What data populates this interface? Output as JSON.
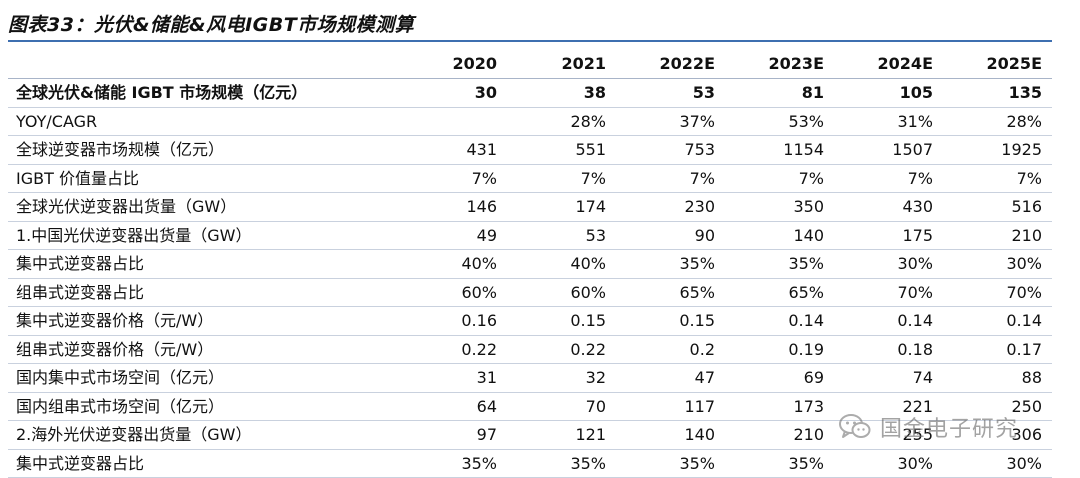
{
  "caption": "图表33：光伏&储能&风电IGBT市场规模测算",
  "table": {
    "header": [
      "",
      "2020",
      "2021",
      "2022E",
      "2023E",
      "2024E",
      "2025E"
    ],
    "rows": [
      {
        "label": "全球光伏&储能 IGBT 市场规模（亿元）",
        "bold": true,
        "values": [
          "30",
          "38",
          "53",
          "81",
          "105",
          "135"
        ]
      },
      {
        "label": "YOY/CAGR",
        "bold": false,
        "values": [
          "",
          "28%",
          "37%",
          "53%",
          "31%",
          "28%"
        ]
      },
      {
        "label": "全球逆变器市场规模（亿元）",
        "bold": false,
        "values": [
          "431",
          "551",
          "753",
          "1154",
          "1507",
          "1925"
        ]
      },
      {
        "label": "IGBT 价值量占比",
        "bold": false,
        "values": [
          "7%",
          "7%",
          "7%",
          "7%",
          "7%",
          "7%"
        ]
      },
      {
        "label": "全球光伏逆变器出货量（GW）",
        "bold": false,
        "values": [
          "146",
          "174",
          "230",
          "350",
          "430",
          "516"
        ]
      },
      {
        "label": "1.中国光伏逆变器出货量（GW）",
        "bold": false,
        "values": [
          "49",
          "53",
          "90",
          "140",
          "175",
          "210"
        ]
      },
      {
        "label": "集中式逆变器占比",
        "bold": false,
        "values": [
          "40%",
          "40%",
          "35%",
          "35%",
          "30%",
          "30%"
        ]
      },
      {
        "label": "组串式逆变器占比",
        "bold": false,
        "values": [
          "60%",
          "60%",
          "65%",
          "65%",
          "70%",
          "70%"
        ]
      },
      {
        "label": "集中式逆变器价格（元/W）",
        "bold": false,
        "values": [
          "0.16",
          "0.15",
          "0.15",
          "0.14",
          "0.14",
          "0.14"
        ]
      },
      {
        "label": "组串式逆变器价格（元/W）",
        "bold": false,
        "values": [
          "0.22",
          "0.22",
          "0.2",
          "0.19",
          "0.18",
          "0.17"
        ]
      },
      {
        "label": "国内集中式市场空间（亿元）",
        "bold": false,
        "values": [
          "31",
          "32",
          "47",
          "69",
          "74",
          "88"
        ]
      },
      {
        "label": "国内组串式市场空间（亿元）",
        "bold": false,
        "values": [
          "64",
          "70",
          "117",
          "173",
          "221",
          "250"
        ]
      },
      {
        "label": "2.海外光伏逆变器出货量（GW）",
        "bold": false,
        "values": [
          "97",
          "121",
          "140",
          "210",
          "255",
          "306"
        ]
      },
      {
        "label": "集中式逆变器占比",
        "bold": false,
        "values": [
          "35%",
          "35%",
          "35%",
          "35%",
          "30%",
          "30%"
        ]
      }
    ]
  },
  "watermark": {
    "text": "国金电子研究",
    "icon": "wechat-icon"
  },
  "colors": {
    "rule": "#3e6fb0",
    "text": "#111111",
    "watermark": "#6b6b6b"
  }
}
